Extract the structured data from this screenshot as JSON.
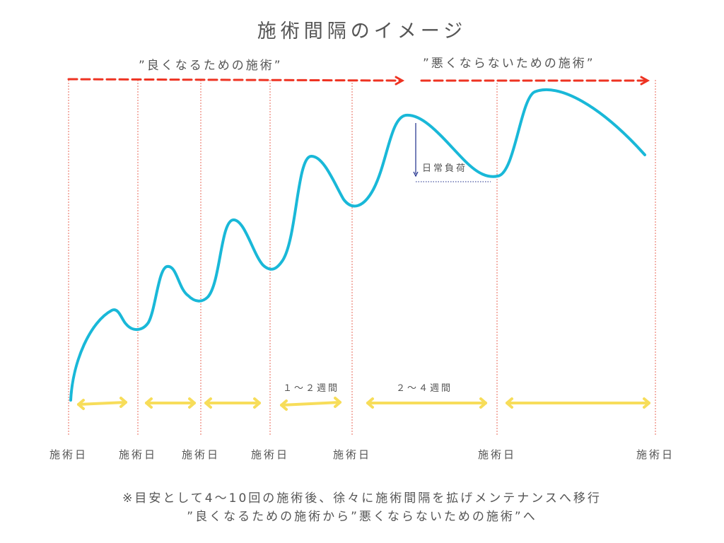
{
  "title": "施術間隔のイメージ",
  "phases": {
    "good": "”良くなるための施術”",
    "bad": "”悪くならないための施術”"
  },
  "day_label": "施術日",
  "intervals": {
    "short": "１～２週間",
    "long": "２～４週間"
  },
  "daily_load": "日常負荷",
  "notes": {
    "line1": "※目安として4～10回の施術後、徐々に施術間隔を拡げメンテナンスへ移行",
    "line2": "”良くなるための施術から”悪くならないための施術”へ"
  },
  "colors": {
    "curve": "#19b8d8",
    "phase_arrow": "#ee3322",
    "interval_arrow": "#f7dd5a",
    "divider": "#e8685a",
    "load_marker": "#1a2a8a",
    "text": "#555555"
  }
}
